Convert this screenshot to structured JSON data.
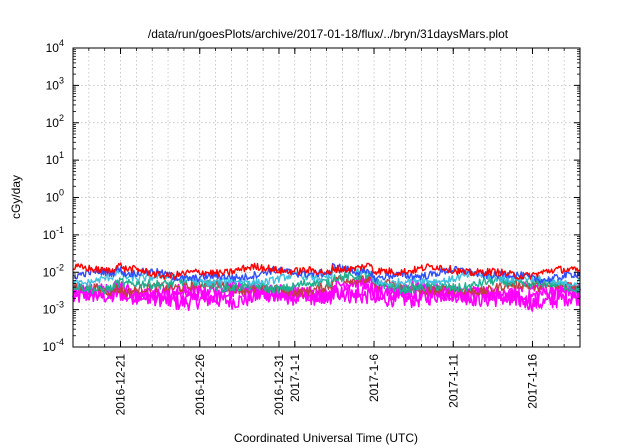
{
  "chart_data": {
    "type": "line",
    "title": "/data/run/goesPlots/archive/2017-01-18/flux/../bryn/31daysMars.plot",
    "xlabel": "Coordinated Universal Time (UTC)",
    "ylabel": "cGy/day",
    "y_scale": "log",
    "ylim": [
      0.0001,
      10000
    ],
    "y_ticks": [
      {
        "value": 0.0001,
        "base": "10",
        "exp": "-4"
      },
      {
        "value": 0.001,
        "base": "10",
        "exp": "-3"
      },
      {
        "value": 0.01,
        "base": "10",
        "exp": "-2"
      },
      {
        "value": 0.1,
        "base": "10",
        "exp": "-1"
      },
      {
        "value": 1,
        "base": "10",
        "exp": "0"
      },
      {
        "value": 10,
        "base": "10",
        "exp": "1"
      },
      {
        "value": 100,
        "base": "10",
        "exp": "2"
      },
      {
        "value": 1000,
        "base": "10",
        "exp": "3"
      },
      {
        "value": 10000,
        "base": "10",
        "exp": "4"
      }
    ],
    "xlim": [
      "2016-12-18",
      "2017-01-19"
    ],
    "x_ticks": [
      {
        "value": "2016-12-21",
        "label": "2016-12-21"
      },
      {
        "value": "2016-12-26",
        "label": "2016-12-26"
      },
      {
        "value": "2016-12-31",
        "label": "2016-12-31"
      },
      {
        "value": "2017-01-01",
        "label": "2017-1-1"
      },
      {
        "value": "2017-01-06",
        "label": "2017-1-6"
      },
      {
        "value": "2017-01-11",
        "label": "2017-1-11"
      },
      {
        "value": "2017-01-16",
        "label": "2017-1-16"
      }
    ],
    "grid": true,
    "series": [
      {
        "color": "#ff00ff",
        "x_start": "2016-12-18",
        "x_end": "2017-01-19",
        "baseline": 0.002,
        "variation": 0.45
      },
      {
        "color": "#ff00ff",
        "x_start": "2016-12-18",
        "x_end": "2017-01-19",
        "baseline": 0.0026,
        "variation": 0.4
      },
      {
        "color": "#ff00ff",
        "x_start": "2016-12-18",
        "x_end": "2017-01-19",
        "baseline": 0.0032,
        "variation": 0.35
      },
      {
        "color": "#c04040",
        "x_start": "2016-12-18",
        "x_end": "2017-01-19",
        "baseline": 0.0038,
        "variation": 0.25
      },
      {
        "color": "#20b090",
        "x_start": "2016-12-18",
        "x_end": "2017-01-19",
        "baseline": 0.0045,
        "variation": 0.25
      },
      {
        "color": "#40c0e0",
        "x_start": "2016-12-18",
        "x_end": "2017-01-19",
        "baseline": 0.0065,
        "variation": 0.2
      },
      {
        "color": "#3050ff",
        "x_start": "2016-12-18",
        "x_end": "2017-01-19",
        "baseline": 0.0085,
        "variation": 0.2
      },
      {
        "color": "#ff0000",
        "x_start": "2016-12-18",
        "x_end": "2017-01-19",
        "baseline": 0.0105,
        "variation": 0.2
      }
    ]
  }
}
